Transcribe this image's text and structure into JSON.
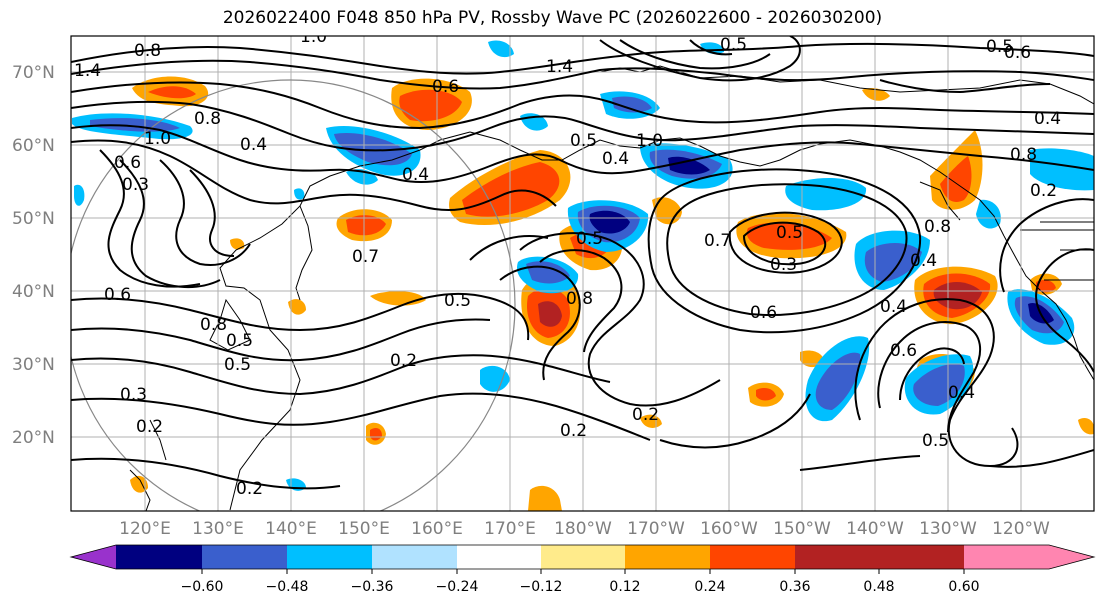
{
  "title": "2026022400 F048 850 hPa PV, Rossby Wave PC (2026022600 - 2026030200)",
  "map": {
    "lat_labels": [
      "70°N",
      "60°N",
      "50°N",
      "40°N",
      "30°N",
      "20°N"
    ],
    "lon_labels": [
      "120°E",
      "130°E",
      "140°E",
      "150°E",
      "160°E",
      "170°E",
      "180°W",
      "170°W",
      "160°W",
      "150°W",
      "140°W",
      "130°W",
      "120°W"
    ],
    "contour_labels": [
      "1.4",
      "0.8",
      "1.0",
      "0.6",
      "1.4",
      "0.8",
      "1.0",
      "0.4",
      "0.4",
      "0.5",
      "0.4",
      "1.0",
      "0.7",
      "0.5",
      "0.6",
      "0.5",
      "0.7",
      "0.6",
      "0.3",
      "0.6",
      "0.8",
      "0.5",
      "0.8",
      "0.5",
      "0.2",
      "0.5",
      "0.2",
      "0.2",
      "0.5",
      "0.4",
      "0.6",
      "0.4",
      "0.5",
      "0.3",
      "0.2",
      "0.2",
      "0.4",
      "0.6",
      "0.8",
      "0.3",
      "0.8",
      "0.5",
      "0.4",
      "0.2"
    ]
  },
  "colorbar": {
    "ticks": [
      "−0.60",
      "−0.48",
      "−0.36",
      "−0.24",
      "−0.12",
      "0.12",
      "0.24",
      "0.36",
      "0.48",
      "0.60"
    ],
    "colors": [
      "#9932cc",
      "#000080",
      "#3a5fcd",
      "#00bfff",
      "#b0e2ff",
      "#ffffff",
      "#ffeb8b",
      "#ffa500",
      "#ff4500",
      "#b22222",
      "#ff85b0"
    ]
  }
}
